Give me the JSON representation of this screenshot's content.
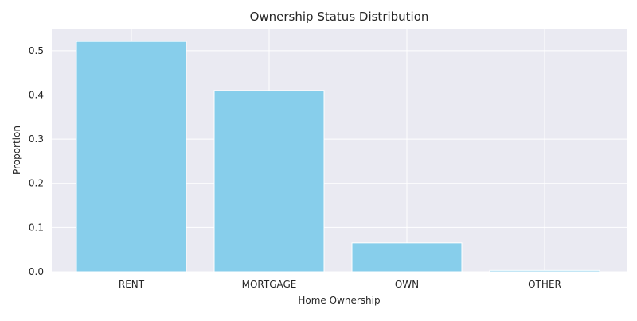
{
  "chart_data": {
    "type": "bar",
    "title": "Ownership Status Distribution",
    "xlabel": "Home Ownership",
    "ylabel": "Proportion",
    "categories": [
      "RENT",
      "MORTGAGE",
      "OWN",
      "OTHER"
    ],
    "values": [
      0.521,
      0.41,
      0.065,
      0.003
    ],
    "ylim": [
      0,
      0.55
    ],
    "yticks": [
      "0.0",
      "0.1",
      "0.2",
      "0.3",
      "0.4",
      "0.5"
    ],
    "grid": true,
    "bar_color": "#87CEEB",
    "background_color": "#EAEAF2",
    "grid_color": "#FFFFFF"
  }
}
